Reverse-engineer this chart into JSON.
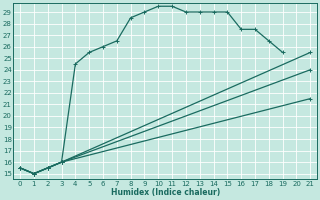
{
  "xlabel": "Humidex (Indice chaleur)",
  "xlim": [
    -0.5,
    21.5
  ],
  "ylim": [
    14.5,
    29.8
  ],
  "xticks": [
    0,
    1,
    2,
    3,
    4,
    5,
    6,
    7,
    8,
    9,
    10,
    11,
    12,
    13,
    14,
    15,
    16,
    17,
    18,
    19,
    20,
    21
  ],
  "yticks": [
    15,
    16,
    17,
    18,
    19,
    20,
    21,
    22,
    23,
    24,
    25,
    26,
    27,
    28,
    29
  ],
  "bg_color": "#c5e8e0",
  "grid_color": "#b0d8d0",
  "line_color": "#1a6b60",
  "lines": [
    {
      "x": [
        0,
        1,
        2,
        3,
        4,
        5,
        6,
        7,
        8,
        9,
        10,
        11,
        12,
        13,
        14,
        15,
        16,
        17,
        18,
        19
      ],
      "y": [
        15.5,
        15.0,
        15.5,
        16.0,
        24.5,
        25.5,
        26.0,
        26.5,
        28.5,
        29.0,
        29.5,
        29.5,
        29.0,
        29.0,
        29.0,
        29.0,
        27.5,
        27.5,
        26.5,
        25.5
      ]
    },
    {
      "x": [
        0,
        1,
        2,
        3,
        21
      ],
      "y": [
        15.5,
        15.0,
        15.5,
        16.0,
        25.5
      ]
    },
    {
      "x": [
        0,
        1,
        2,
        3,
        21
      ],
      "y": [
        15.5,
        15.0,
        15.5,
        16.0,
        24.0
      ]
    },
    {
      "x": [
        0,
        1,
        2,
        3,
        21
      ],
      "y": [
        15.5,
        15.0,
        15.5,
        16.0,
        21.5
      ]
    }
  ]
}
